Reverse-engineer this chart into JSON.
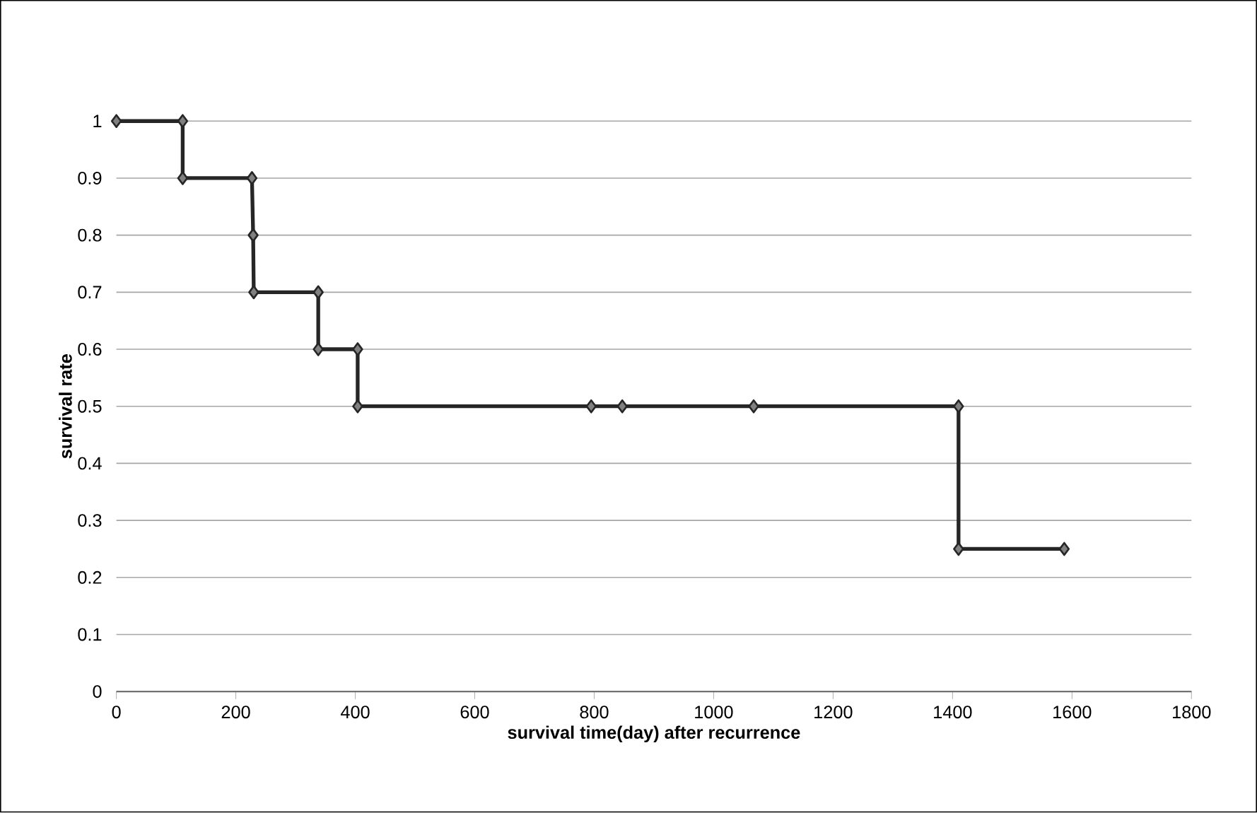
{
  "chart_data": {
    "type": "line",
    "xlabel": "survival time(day) after recurrence",
    "ylabel": "survival rate",
    "x": [
      0,
      111,
      111,
      227,
      229,
      230,
      338,
      338,
      404,
      404,
      795,
      847,
      1067,
      1410,
      1410,
      1587
    ],
    "series": [
      {
        "color": "#262626",
        "values": [
          1,
          1,
          0.9,
          0.9,
          0.8,
          0.7,
          0.7,
          0.6,
          0.6,
          0.5,
          0.5,
          0.5,
          0.5,
          0.5,
          0.25,
          0.25
        ]
      }
    ],
    "xlim": [
      0,
      1800
    ],
    "xticks": [
      0,
      200,
      400,
      600,
      800,
      1000,
      1200,
      1400,
      1600,
      1800
    ],
    "ylim": [
      0,
      1
    ],
    "yticks": [
      0,
      0.1,
      0.2,
      0.3,
      0.4,
      0.5,
      0.6,
      0.7,
      0.8,
      0.9,
      1
    ],
    "grid": "y",
    "marker": "diamond",
    "line_style": "solid"
  }
}
